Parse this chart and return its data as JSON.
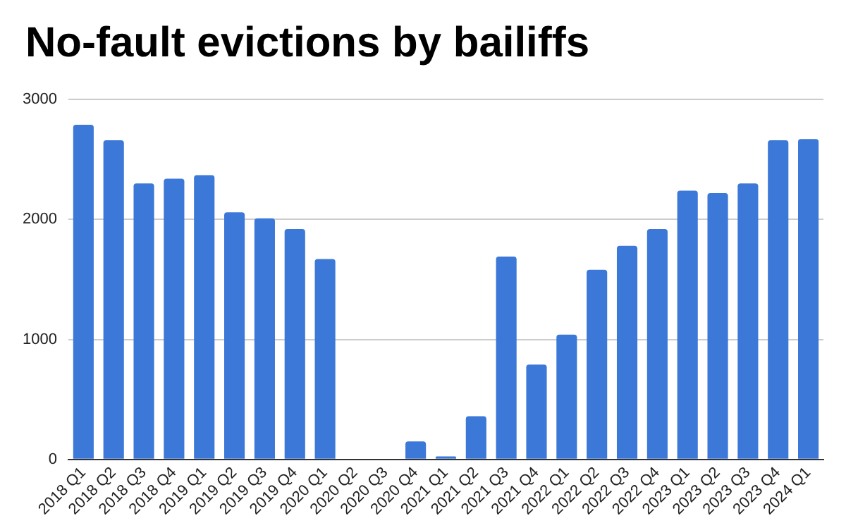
{
  "chart_data": {
    "type": "bar",
    "title": "No-fault evictions by bailiffs",
    "categories": [
      "2018 Q1",
      "2018 Q2",
      "2018 Q3",
      "2018 Q4",
      "2019 Q1",
      "2019 Q2",
      "2019 Q3",
      "2019 Q4",
      "2020 Q1",
      "2020 Q2",
      "2020 Q3",
      "2020 Q4",
      "2021 Q1",
      "2021 Q2",
      "2021 Q3",
      "2021 Q4",
      "2022 Q1",
      "2022 Q2",
      "2022 Q3",
      "2022 Q4",
      "2023 Q1",
      "2023 Q2",
      "2023 Q3",
      "2023 Q4",
      "2024 Q1"
    ],
    "values": [
      2790,
      2660,
      2300,
      2340,
      2370,
      2060,
      2010,
      1920,
      1670,
      0,
      0,
      150,
      25,
      360,
      1690,
      790,
      1040,
      1580,
      1780,
      1920,
      2240,
      2220,
      2300,
      2660,
      2670
    ],
    "color": "#3c78d8",
    "ylim": [
      0,
      3000
    ],
    "yticks": [
      0,
      1000,
      2000,
      3000
    ],
    "grid": "y"
  }
}
